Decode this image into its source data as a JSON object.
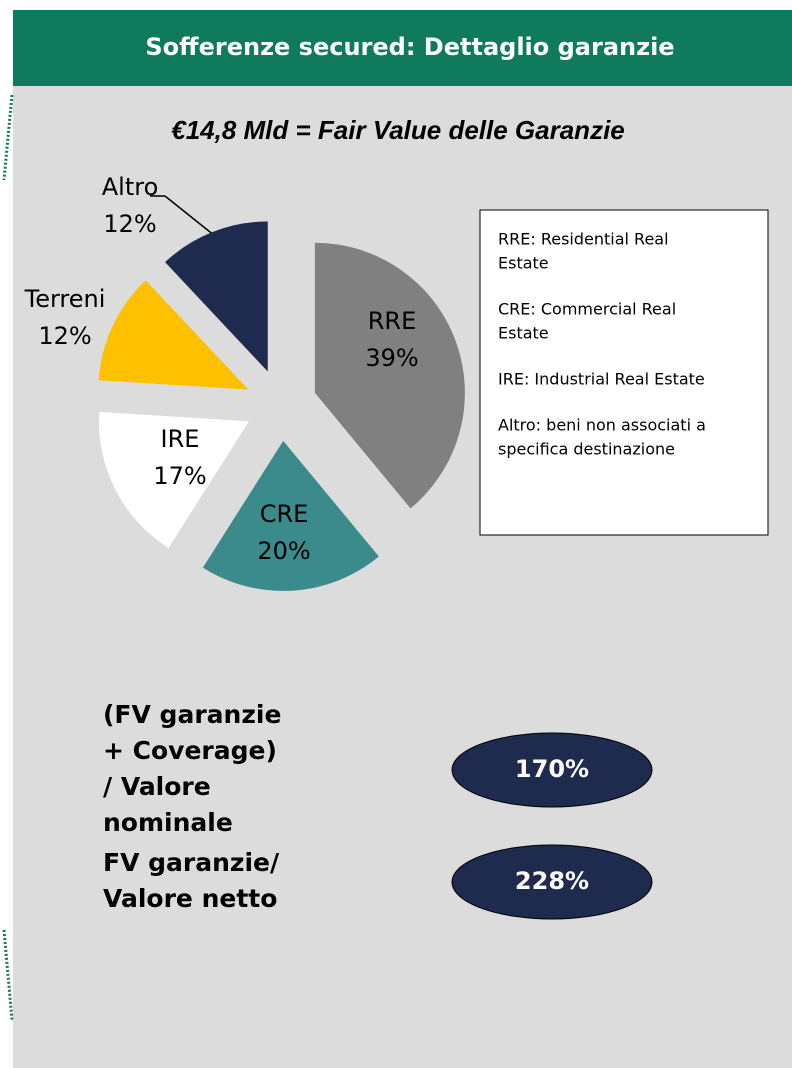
{
  "header": {
    "title": "Sofferenze secured: Dettaglio garanzie"
  },
  "chart_data": {
    "type": "pie",
    "title": "€14,8 Mld = Fair Value delle Garanzie",
    "categories": [
      "RRE",
      "CRE",
      "IRE",
      "Terreni",
      "Altro"
    ],
    "values": [
      39,
      20,
      17,
      12,
      12
    ],
    "value_labels": [
      "39%",
      "20%",
      "17%",
      "12%",
      "12%"
    ],
    "colors": [
      "#808080",
      "#3b8b8c",
      "#ffffff",
      "#ffc000",
      "#1f2a4f"
    ]
  },
  "legend_notes": [
    [
      "RRE: Residential Real",
      "Estate"
    ],
    [
      "CRE: Commercial Real",
      "Estate"
    ],
    [
      "IRE: Industrial Real Estate"
    ],
    [
      "Altro: beni non associati a",
      "specifica destinazione"
    ]
  ],
  "metrics": [
    {
      "label": [
        "(FV garanzie",
        "+ Coverage)",
        "/ Valore",
        "nominale"
      ],
      "value": "170%"
    },
    {
      "label": [
        "FV garanzie/",
        "Valore netto"
      ],
      "value": "228%"
    }
  ]
}
